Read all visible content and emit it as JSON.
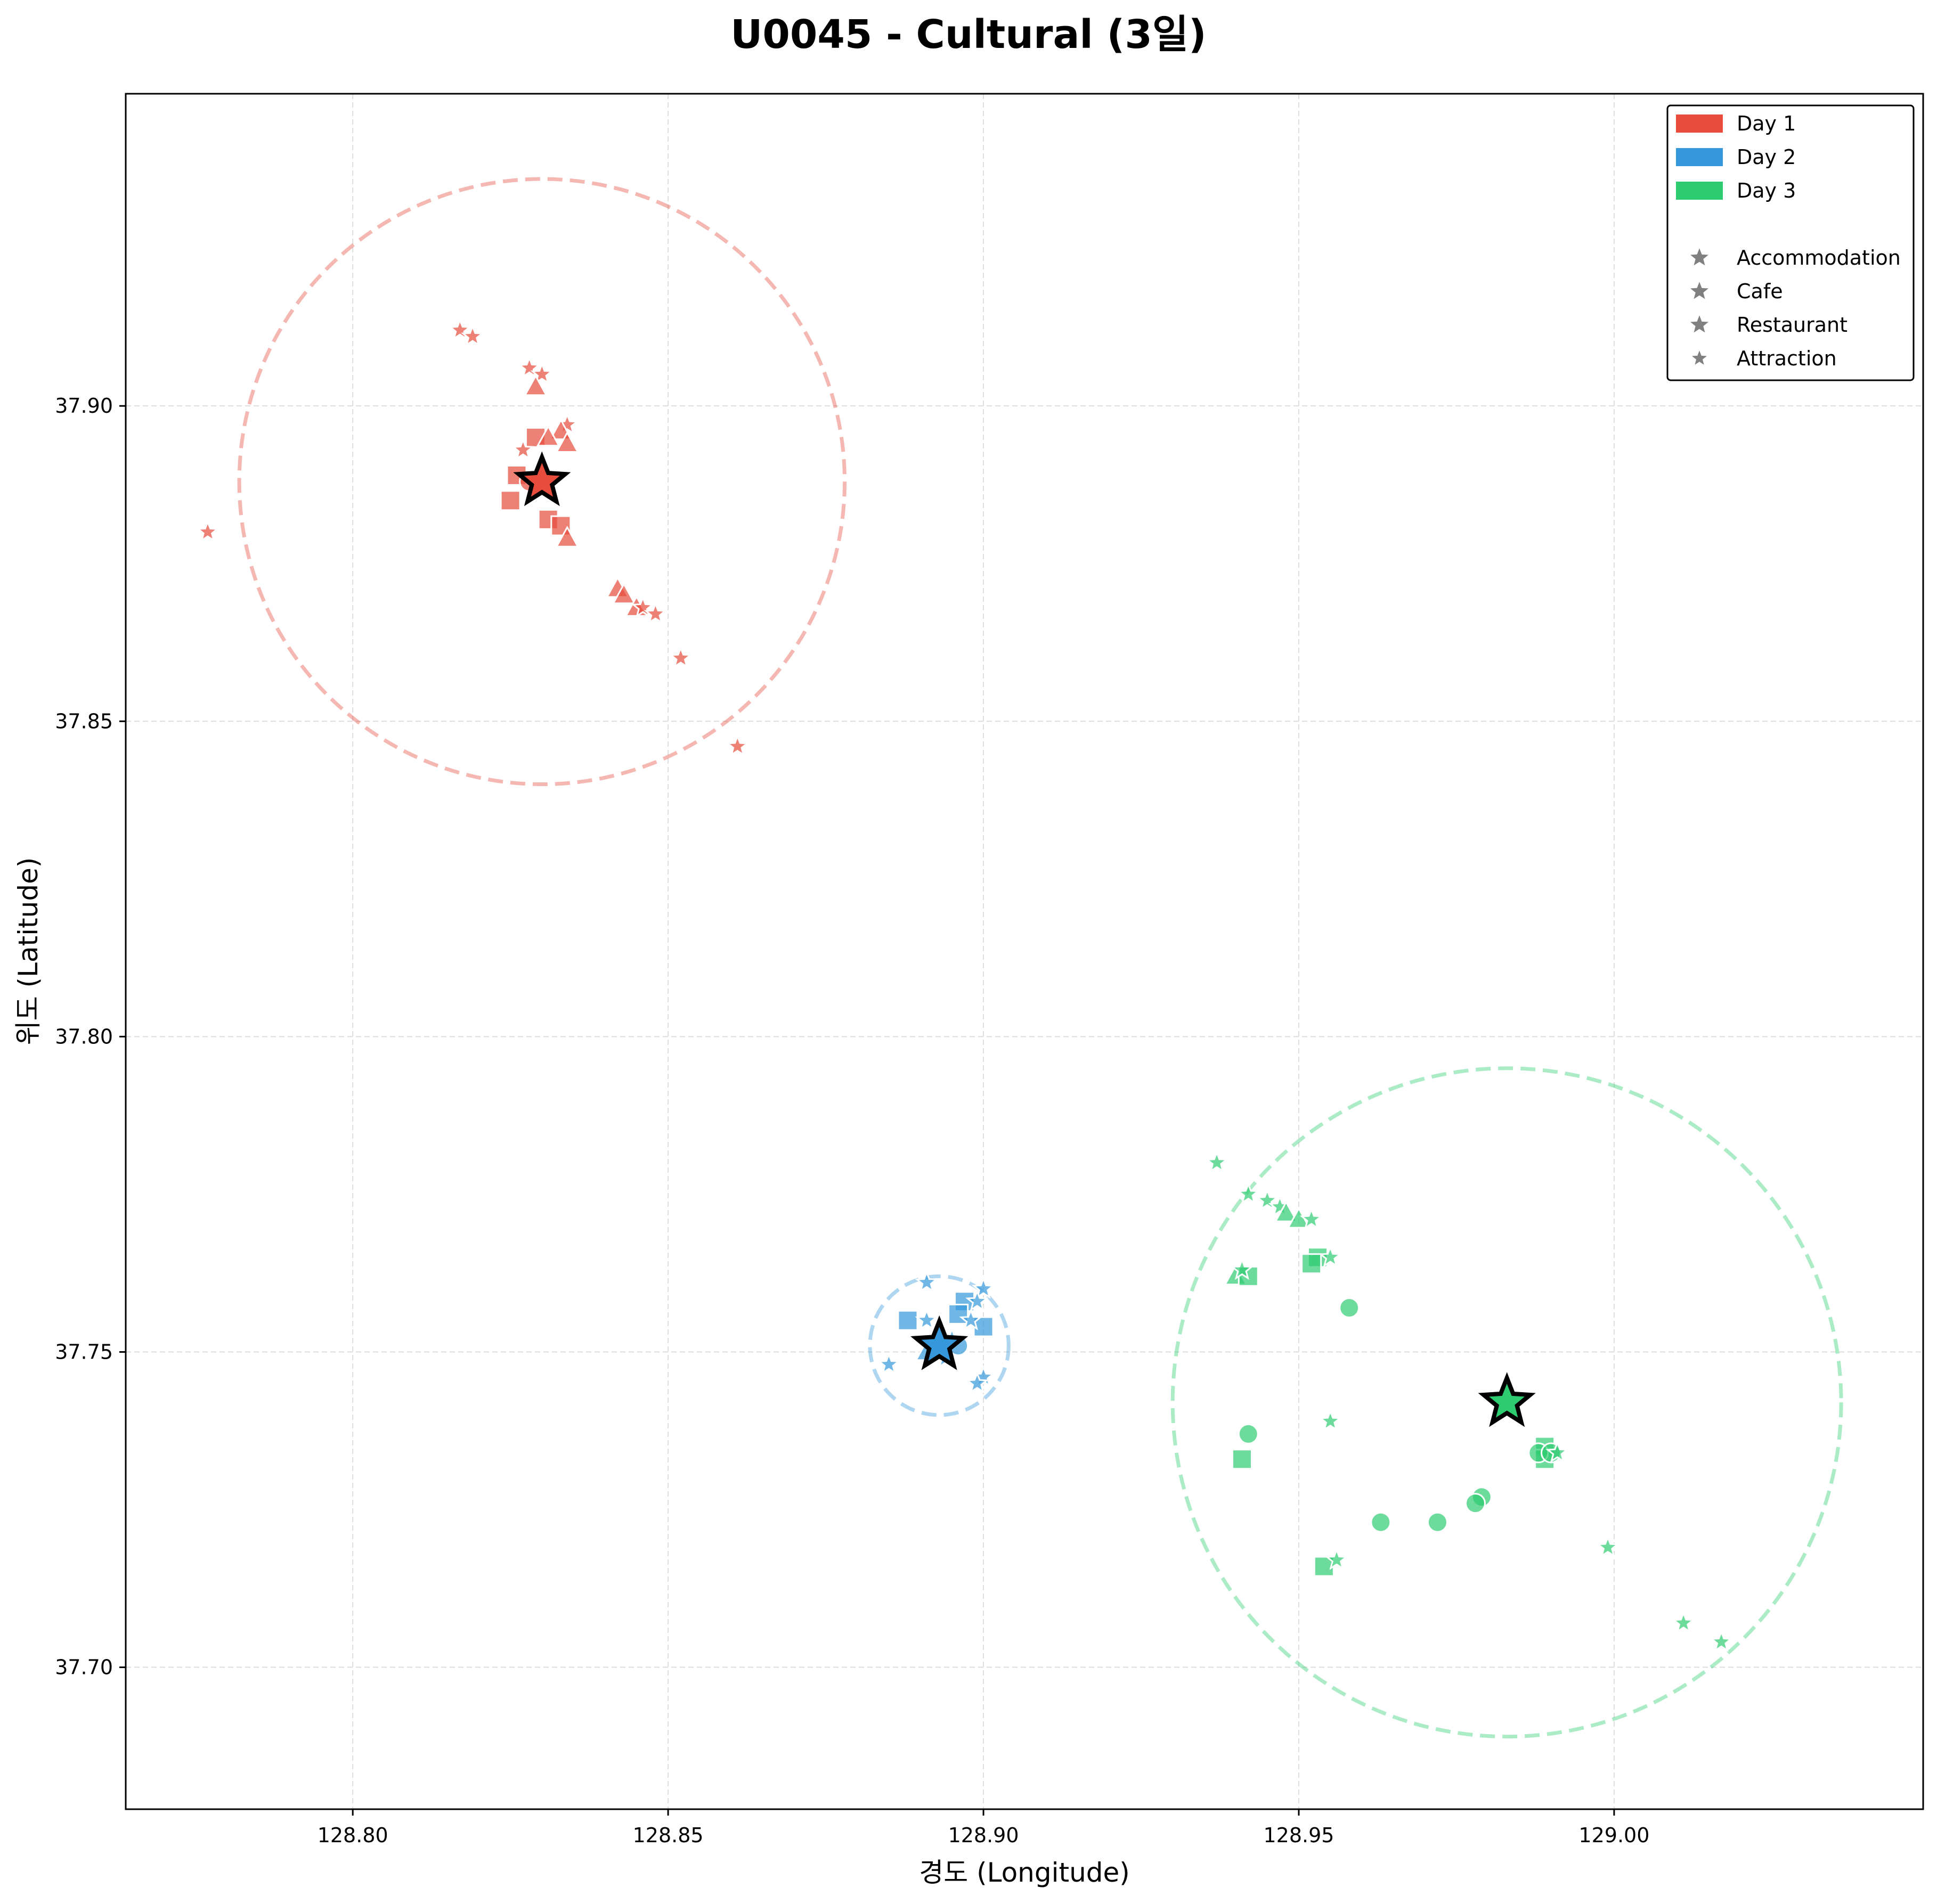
{
  "chart_data": {
    "type": "scatter",
    "title": "U0045 - Cultural (3일)",
    "xlabel": "경도 (Longitude)",
    "ylabel": "위도 (Latitude)",
    "xlim": [
      128.764,
      129.049
    ],
    "ylim": [
      37.6775,
      37.9495
    ],
    "x_ticks": [
      128.8,
      128.85,
      128.9,
      128.95,
      129.0
    ],
    "x_tick_labels": [
      "128.80",
      "128.85",
      "128.90",
      "128.95",
      "129.00"
    ],
    "y_ticks": [
      37.7,
      37.75,
      37.8,
      37.85,
      37.9
    ],
    "y_tick_labels": [
      "37.70",
      "37.75",
      "37.80",
      "37.85",
      "37.90"
    ],
    "grid": true,
    "legend_position": "top-right",
    "legend_days": [
      {
        "label": "Day 1",
        "color": "#e74c3c"
      },
      {
        "label": "Day 2",
        "color": "#3498db"
      },
      {
        "label": "Day 3",
        "color": "#2ecc71"
      }
    ],
    "legend_types": [
      {
        "label": "Accommodation",
        "marker": "square"
      },
      {
        "label": "Cafe",
        "marker": "triangle"
      },
      {
        "label": "Restaurant",
        "marker": "circle"
      },
      {
        "label": "Attraction",
        "marker": "star"
      }
    ],
    "series": [
      {
        "name": "Day 1",
        "color": "#e74c3c",
        "center": {
          "x": 128.83,
          "y": 37.888
        },
        "radius_deg": 0.048,
        "points": [
          {
            "x": 128.817,
            "y": 37.912,
            "type": "attraction"
          },
          {
            "x": 128.819,
            "y": 37.911,
            "type": "attraction"
          },
          {
            "x": 128.777,
            "y": 37.88,
            "type": "attraction"
          },
          {
            "x": 128.828,
            "y": 37.906,
            "type": "attraction"
          },
          {
            "x": 128.83,
            "y": 37.905,
            "type": "attraction"
          },
          {
            "x": 128.829,
            "y": 37.903,
            "type": "cafe"
          },
          {
            "x": 128.834,
            "y": 37.897,
            "type": "attraction"
          },
          {
            "x": 128.833,
            "y": 37.896,
            "type": "cafe"
          },
          {
            "x": 128.834,
            "y": 37.894,
            "type": "cafe"
          },
          {
            "x": 128.829,
            "y": 37.895,
            "type": "accommodation"
          },
          {
            "x": 128.831,
            "y": 37.895,
            "type": "cafe"
          },
          {
            "x": 128.827,
            "y": 37.893,
            "type": "attraction"
          },
          {
            "x": 128.826,
            "y": 37.889,
            "type": "accommodation"
          },
          {
            "x": 128.825,
            "y": 37.885,
            "type": "accommodation"
          },
          {
            "x": 128.828,
            "y": 37.888,
            "type": "restaurant"
          },
          {
            "x": 128.831,
            "y": 37.882,
            "type": "accommodation"
          },
          {
            "x": 128.833,
            "y": 37.881,
            "type": "accommodation"
          },
          {
            "x": 128.834,
            "y": 37.879,
            "type": "cafe"
          },
          {
            "x": 128.842,
            "y": 37.871,
            "type": "cafe"
          },
          {
            "x": 128.843,
            "y": 37.87,
            "type": "cafe"
          },
          {
            "x": 128.845,
            "y": 37.868,
            "type": "cafe"
          },
          {
            "x": 128.846,
            "y": 37.868,
            "type": "attraction"
          },
          {
            "x": 128.848,
            "y": 37.867,
            "type": "attraction"
          },
          {
            "x": 128.852,
            "y": 37.86,
            "type": "attraction"
          },
          {
            "x": 128.861,
            "y": 37.846,
            "type": "attraction"
          }
        ]
      },
      {
        "name": "Day 2",
        "color": "#3498db",
        "center": {
          "x": 128.893,
          "y": 37.751
        },
        "radius_deg": 0.011,
        "points": [
          {
            "x": 128.891,
            "y": 37.761,
            "type": "attraction"
          },
          {
            "x": 128.9,
            "y": 37.76,
            "type": "attraction"
          },
          {
            "x": 128.897,
            "y": 37.758,
            "type": "accommodation"
          },
          {
            "x": 128.899,
            "y": 37.758,
            "type": "attraction"
          },
          {
            "x": 128.896,
            "y": 37.756,
            "type": "accommodation"
          },
          {
            "x": 128.888,
            "y": 37.755,
            "type": "accommodation"
          },
          {
            "x": 128.891,
            "y": 37.755,
            "type": "attraction"
          },
          {
            "x": 128.9,
            "y": 37.754,
            "type": "accommodation"
          },
          {
            "x": 128.898,
            "y": 37.755,
            "type": "attraction"
          },
          {
            "x": 128.895,
            "y": 37.752,
            "type": "attraction"
          },
          {
            "x": 128.896,
            "y": 37.751,
            "type": "restaurant"
          },
          {
            "x": 128.891,
            "y": 37.75,
            "type": "cafe"
          },
          {
            "x": 128.894,
            "y": 37.749,
            "type": "attraction"
          },
          {
            "x": 128.885,
            "y": 37.748,
            "type": "attraction"
          },
          {
            "x": 128.9,
            "y": 37.746,
            "type": "attraction"
          },
          {
            "x": 128.899,
            "y": 37.745,
            "type": "attraction"
          }
        ]
      },
      {
        "name": "Day 3",
        "color": "#2ecc71",
        "center": {
          "x": 128.983,
          "y": 37.742
        },
        "radius_deg": 0.053,
        "points": [
          {
            "x": 128.937,
            "y": 37.78,
            "type": "attraction"
          },
          {
            "x": 128.942,
            "y": 37.775,
            "type": "attraction"
          },
          {
            "x": 128.945,
            "y": 37.774,
            "type": "attraction"
          },
          {
            "x": 128.947,
            "y": 37.773,
            "type": "attraction"
          },
          {
            "x": 128.948,
            "y": 37.772,
            "type": "cafe"
          },
          {
            "x": 128.95,
            "y": 37.771,
            "type": "cafe"
          },
          {
            "x": 128.952,
            "y": 37.771,
            "type": "attraction"
          },
          {
            "x": 128.953,
            "y": 37.765,
            "type": "accommodation"
          },
          {
            "x": 128.952,
            "y": 37.764,
            "type": "accommodation"
          },
          {
            "x": 128.955,
            "y": 37.765,
            "type": "attraction"
          },
          {
            "x": 128.94,
            "y": 37.762,
            "type": "cafe"
          },
          {
            "x": 128.942,
            "y": 37.762,
            "type": "accommodation"
          },
          {
            "x": 128.941,
            "y": 37.763,
            "type": "attraction"
          },
          {
            "x": 128.958,
            "y": 37.757,
            "type": "restaurant"
          },
          {
            "x": 128.955,
            "y": 37.739,
            "type": "attraction"
          },
          {
            "x": 128.942,
            "y": 37.737,
            "type": "restaurant"
          },
          {
            "x": 128.941,
            "y": 37.733,
            "type": "accommodation"
          },
          {
            "x": 128.989,
            "y": 37.735,
            "type": "accommodation"
          },
          {
            "x": 128.989,
            "y": 37.733,
            "type": "accommodation"
          },
          {
            "x": 128.988,
            "y": 37.734,
            "type": "restaurant"
          },
          {
            "x": 128.99,
            "y": 37.734,
            "type": "restaurant"
          },
          {
            "x": 128.991,
            "y": 37.734,
            "type": "attraction"
          },
          {
            "x": 128.979,
            "y": 37.727,
            "type": "restaurant"
          },
          {
            "x": 128.978,
            "y": 37.726,
            "type": "restaurant"
          },
          {
            "x": 128.972,
            "y": 37.723,
            "type": "restaurant"
          },
          {
            "x": 128.963,
            "y": 37.723,
            "type": "restaurant"
          },
          {
            "x": 128.954,
            "y": 37.716,
            "type": "accommodation"
          },
          {
            "x": 128.956,
            "y": 37.717,
            "type": "attraction"
          },
          {
            "x": 128.999,
            "y": 37.719,
            "type": "attraction"
          },
          {
            "x": 129.011,
            "y": 37.707,
            "type": "attraction"
          },
          {
            "x": 129.017,
            "y": 37.704,
            "type": "attraction"
          }
        ]
      }
    ]
  }
}
